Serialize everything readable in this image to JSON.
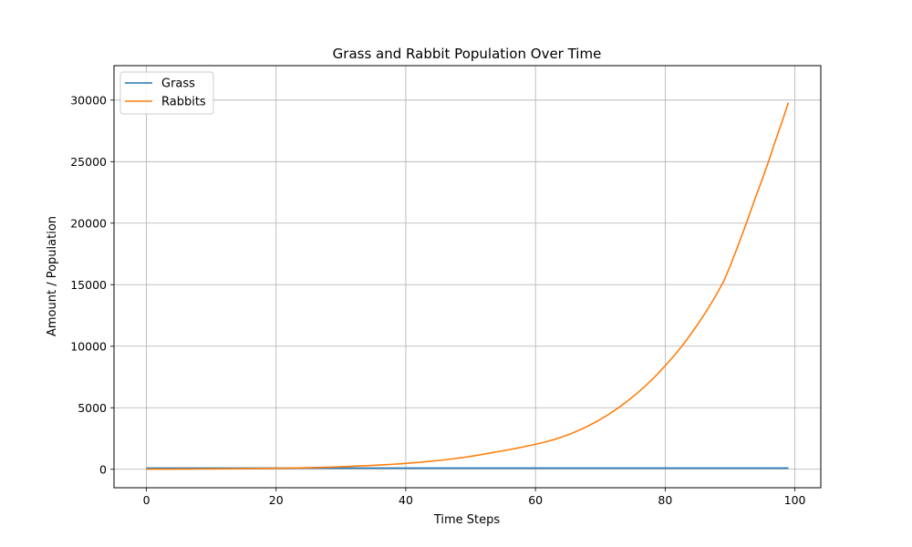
{
  "chart_data": {
    "type": "line",
    "title": "Grass and Rabbit Population Over Time",
    "xlabel": "Time Steps",
    "ylabel": "Amount / Population",
    "xlim": [
      -5,
      104
    ],
    "ylim": [
      -1500,
      32800
    ],
    "xticks": [
      0,
      20,
      40,
      60,
      80,
      100
    ],
    "yticks": [
      0,
      5000,
      10000,
      15000,
      20000,
      25000,
      30000
    ],
    "grid": true,
    "legend_position": "top-left",
    "x": [
      0,
      1,
      2,
      3,
      4,
      5,
      6,
      7,
      8,
      9,
      10,
      11,
      12,
      13,
      14,
      15,
      16,
      17,
      18,
      19,
      20,
      21,
      22,
      23,
      24,
      25,
      26,
      27,
      28,
      29,
      30,
      31,
      32,
      33,
      34,
      35,
      36,
      37,
      38,
      39,
      40,
      41,
      42,
      43,
      44,
      45,
      46,
      47,
      48,
      49,
      50,
      51,
      52,
      53,
      54,
      55,
      56,
      57,
      58,
      59,
      60,
      61,
      62,
      63,
      64,
      65,
      66,
      67,
      68,
      69,
      70,
      71,
      72,
      73,
      74,
      75,
      76,
      77,
      78,
      79,
      80,
      81,
      82,
      83,
      84,
      85,
      86,
      87,
      88,
      89,
      90,
      91,
      92,
      93,
      94,
      95,
      96,
      97,
      98,
      99
    ],
    "series": [
      {
        "name": "Grass",
        "color": "#1f77b4",
        "values": [
          100,
          100,
          100,
          100,
          100,
          100,
          100,
          100,
          100,
          100,
          100,
          100,
          100,
          100,
          100,
          100,
          100,
          100,
          100,
          100,
          100,
          100,
          100,
          100,
          100,
          100,
          100,
          100,
          100,
          100,
          100,
          100,
          100,
          100,
          100,
          100,
          100,
          100,
          100,
          100,
          100,
          100,
          100,
          100,
          100,
          100,
          100,
          100,
          100,
          100,
          100,
          100,
          100,
          100,
          100,
          100,
          100,
          100,
          100,
          100,
          100,
          100,
          100,
          100,
          100,
          100,
          100,
          100,
          100,
          100,
          100,
          100,
          100,
          100,
          100,
          100,
          100,
          100,
          100,
          100,
          100,
          100,
          100,
          100,
          100,
          100,
          100,
          100,
          100,
          100,
          100,
          100,
          100,
          100,
          100,
          100,
          100,
          100,
          100,
          100
        ]
      },
      {
        "name": "Rabbits",
        "color": "#ff7f0e",
        "values": [
          10,
          11,
          13,
          15,
          17,
          20,
          22,
          25,
          28,
          31,
          35,
          38,
          42,
          46,
          50,
          55,
          60,
          65,
          70,
          77,
          84,
          91,
          99,
          108,
          118,
          128,
          140,
          153,
          168,
          185,
          205,
          225,
          247,
          270,
          293,
          318,
          345,
          375,
          407,
          442,
          480,
          520,
          563,
          610,
          660,
          712,
          770,
          833,
          900,
          972,
          1050,
          1135,
          1225,
          1320,
          1415,
          1505,
          1600,
          1700,
          1805,
          1915,
          2030,
          2150,
          2290,
          2440,
          2610,
          2800,
          3010,
          3240,
          3490,
          3760,
          4050,
          4370,
          4710,
          5080,
          5470,
          5890,
          6330,
          6800,
          7300,
          7840,
          8410,
          9000,
          9620,
          10300,
          11010,
          11770,
          12560,
          13400,
          14300,
          15250,
          16500,
          17850,
          19250,
          20700,
          22200,
          23600,
          25100,
          26700,
          28200,
          29800
        ]
      }
    ]
  }
}
